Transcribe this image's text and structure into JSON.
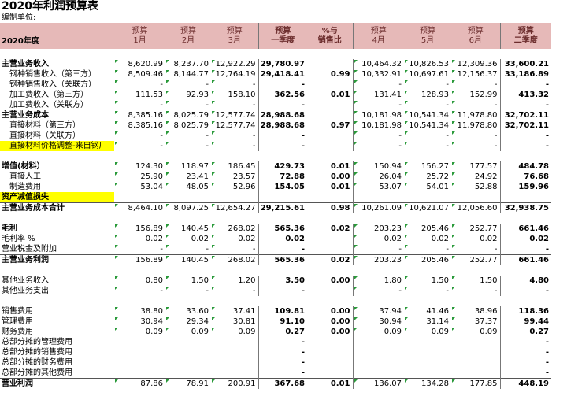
{
  "title": "2020年利润预算表",
  "subtitle": "编制单位:",
  "table": {
    "header": {
      "label": "2020年度",
      "columns": [
        {
          "top": "预算",
          "bottom": "1月"
        },
        {
          "top": "预算",
          "bottom": "2月"
        },
        {
          "top": "预算",
          "bottom": "3月"
        },
        {
          "top": "预算",
          "bottom": "一季度"
        },
        {
          "top": "%与",
          "bottom": "销售比"
        },
        {
          "top": "预算",
          "bottom": "4月"
        },
        {
          "top": "预算",
          "bottom": "5月"
        },
        {
          "top": "预算",
          "bottom": "6月"
        },
        {
          "top": "预算",
          "bottom": "二季度"
        }
      ]
    },
    "sections": [
      [
        {
          "label": "主营业务收入",
          "bold": true,
          "cells": [
            "8,620.99",
            "8,237.70",
            "12,922.29",
            "29,780.97",
            null,
            "10,464.32",
            "10,826.53",
            "12,309.36",
            "33,600.21"
          ]
        },
        {
          "label": "钢种销售收入（第三方）",
          "indent": true,
          "cells": [
            "8,509.46",
            "8,144.77",
            "12,764.19",
            "29,418.41",
            "0.99",
            "10,332.91",
            "10,697.61",
            "12,156.37",
            "33,186.89"
          ]
        },
        {
          "label": "钢种销售收入（关联方）",
          "indent": true,
          "cells": [
            "-",
            "-",
            "-",
            "-",
            null,
            "-",
            "-",
            "-",
            "-"
          ]
        },
        {
          "label": "加工费收入（第三方）",
          "indent": true,
          "cells": [
            "111.53",
            "92.93",
            "158.10",
            "362.56",
            "0.01",
            "131.41",
            "128.93",
            "152.99",
            "413.32"
          ]
        },
        {
          "label": "加工费收入（关联方）",
          "indent": true,
          "cells": [
            "-",
            "-",
            "-",
            "-",
            null,
            "-",
            "-",
            "-",
            "-"
          ]
        },
        {
          "label": "主营业务成本",
          "bold": true,
          "cells": [
            "8,385.16",
            "8,025.79",
            "12,577.74",
            "28,988.68",
            null,
            "10,181.98",
            "10,541.34",
            "11,978.80",
            "32,702.11"
          ]
        },
        {
          "label": "直接材料（第三方）",
          "indent": true,
          "cells": [
            "8,385.16",
            "8,025.79",
            "12,577.74",
            "28,988.68",
            "0.97",
            "10,181.98",
            "10,541.34",
            "11,978.80",
            "32,702.11"
          ]
        },
        {
          "label": "直接材料（关联方）",
          "indent": true,
          "cells": [
            "-",
            "-",
            "-",
            "-",
            null,
            "-",
            "-",
            "-",
            "-"
          ]
        },
        {
          "label": "直接材料价格调整-来自钢厂",
          "indent": true,
          "highlight": "#ffff00",
          "cells": [
            "-",
            "-",
            "-",
            "-",
            null,
            "-",
            "-",
            "-",
            "-"
          ]
        }
      ],
      [
        {
          "label": "增值(材料）",
          "bold": true,
          "cells": [
            "124.30",
            "118.97",
            "186.45",
            "429.73",
            "0.01",
            "150.94",
            "156.27",
            "177.57",
            "484.78"
          ]
        },
        {
          "label": "直接人工",
          "indent": true,
          "cells": [
            "25.90",
            "23.41",
            "23.57",
            "72.88",
            "0.00",
            "26.04",
            "25.72",
            "24.92",
            "76.68"
          ]
        },
        {
          "label": "制造费用",
          "indent": true,
          "cells": [
            "53.04",
            "48.05",
            "52.96",
            "154.05",
            "0.01",
            "53.07",
            "54.01",
            "52.88",
            "159.96"
          ]
        },
        {
          "label": "资产减值损失",
          "bold": true,
          "highlight": "#ffff00",
          "cells": [
            null,
            null,
            null,
            null,
            null,
            null,
            null,
            null,
            null
          ]
        },
        {
          "label": "主营业务成本合计",
          "bold": true,
          "total": true,
          "cells": [
            "8,464.10",
            "8,097.25",
            "12,654.27",
            "29,215.61",
            "0.98",
            "10,261.09",
            "10,621.07",
            "12,056.60",
            "32,938.75"
          ]
        }
      ],
      [
        {
          "label": "毛利",
          "bold": true,
          "cells": [
            "156.89",
            "140.45",
            "268.02",
            "565.36",
            "0.02",
            "203.23",
            "205.46",
            "252.77",
            "661.46"
          ]
        },
        {
          "label": "毛利率 %",
          "cells": [
            "0.02",
            "0.02",
            "0.02",
            "0.02",
            null,
            "0.02",
            "0.02",
            "0.02",
            "0.02"
          ]
        },
        {
          "label": "营业税金及附加",
          "cells": [
            "-",
            "-",
            "-",
            "-",
            null,
            "-",
            "-",
            "-",
            "-"
          ]
        },
        {
          "label": "主营业务利润",
          "bold": true,
          "total": true,
          "cells": [
            "156.89",
            "140.45",
            "268.02",
            "565.36",
            "0.02",
            "203.23",
            "205.46",
            "252.77",
            "661.46"
          ]
        }
      ],
      [
        {
          "label": "其他业务收入",
          "cells": [
            "0.80",
            "1.50",
            "1.20",
            "3.50",
            "0.00",
            "1.80",
            "1.50",
            "1.50",
            "4.80"
          ]
        },
        {
          "label": "其他业务支出",
          "cells": [
            "-",
            "-",
            "-",
            "-",
            null,
            "-",
            "-",
            "-",
            "-"
          ]
        }
      ],
      [
        {
          "label": "销售费用",
          "cells": [
            "38.80",
            "33.60",
            "37.41",
            "109.81",
            "0.00",
            "37.94",
            "41.46",
            "38.96",
            "118.36"
          ]
        },
        {
          "label": "管理费用",
          "cells": [
            "30.94",
            "29.34",
            "30.81",
            "91.10",
            "0.00",
            "30.94",
            "31.14",
            "37.37",
            "99.44"
          ]
        },
        {
          "label": "财务费用",
          "cells": [
            "0.09",
            "0.09",
            "0.09",
            "0.27",
            "0.00",
            "0.09",
            "0.09",
            "0.09",
            "0.27"
          ]
        },
        {
          "label": "总部分摊的管理费用",
          "cells": [
            null,
            null,
            null,
            "-",
            null,
            null,
            null,
            null,
            "-"
          ]
        },
        {
          "label": "总部分摊的销售费用",
          "cells": [
            null,
            null,
            null,
            "-",
            null,
            null,
            null,
            null,
            "-"
          ]
        },
        {
          "label": "总部分摊的财务费用",
          "cells": [
            null,
            null,
            null,
            "-",
            null,
            null,
            null,
            null,
            "-"
          ]
        },
        {
          "label": "总部分摊的其他费用",
          "cells": [
            null,
            null,
            null,
            "-",
            null,
            null,
            null,
            null,
            "-"
          ]
        },
        {
          "label": "营业利润",
          "bold": true,
          "total": true,
          "cells": [
            "87.86",
            "78.91",
            "200.91",
            "367.68",
            "0.01",
            "136.07",
            "134.28",
            "177.85",
            "448.19"
          ]
        }
      ]
    ]
  }
}
